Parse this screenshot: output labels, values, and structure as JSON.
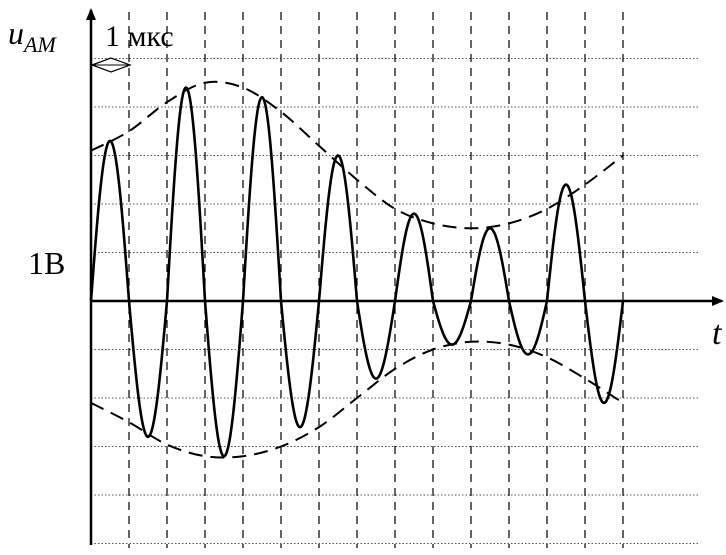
{
  "diagram": {
    "y_axis_label": "u",
    "y_axis_subscript": "AM",
    "x_axis_label": "t",
    "time_scale_label": "1 мкс",
    "voltage_scale_label": "1B",
    "colors": {
      "background": "#ffffff",
      "ink": "#000000",
      "grid": "#555555"
    },
    "signal": {
      "description_type": "amplitude-modulated oscillation",
      "carrier_period_us": 2,
      "duration_us": 14,
      "grid_step_us": 1,
      "grid_step_v": 0.5,
      "peaks_v": [
        1.65,
        2.2,
        2.1,
        1.5,
        0.9,
        0.75,
        1.2
      ],
      "troughs_v": [
        -1.4,
        -1.6,
        -1.3,
        -0.8,
        -0.45,
        -0.55,
        -1.05
      ],
      "envelope_upper_v": [
        1.55,
        1.75,
        2.05,
        2.25,
        2.2,
        1.95,
        1.6,
        1.25,
        0.95,
        0.8,
        0.75,
        0.8,
        0.95,
        1.2,
        1.5
      ],
      "envelope_lower_v": [
        -1.05,
        -1.25,
        -1.48,
        -1.6,
        -1.6,
        -1.5,
        -1.3,
        -1.0,
        -0.7,
        -0.5,
        -0.42,
        -0.45,
        -0.58,
        -0.8,
        -1.05
      ]
    }
  }
}
